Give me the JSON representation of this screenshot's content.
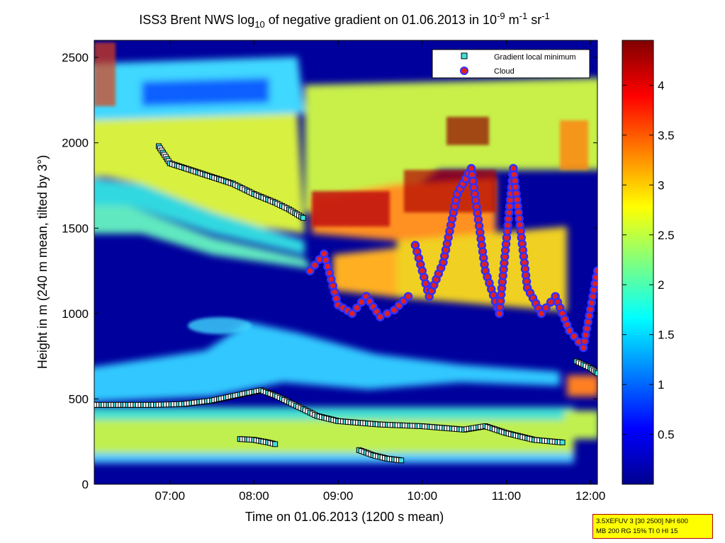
{
  "chart_data": {
    "type": "heatmap",
    "title": "ISS3 Brent NWS log10 of negative gradient on 01.06.2013 in 10-9 m-1 sr-1",
    "title_parts": {
      "a": "ISS3 Brent NWS log",
      "sub1": "10",
      "b": " of negative gradient on 01.06.2013 in 10",
      "sup1": "-9",
      "c": " m",
      "sup2": "-1",
      "d": " sr",
      "sup3": "-1"
    },
    "xlabel": "Time on 01.06.2013 (1200 s mean)",
    "ylabel": "Height in m (240 m mean, tilted by 3°)",
    "xlim": [
      "06:06",
      "12:05"
    ],
    "ylim": [
      0,
      2600
    ],
    "x_ticks": [
      "07:00",
      "08:00",
      "09:00",
      "10:00",
      "11:00",
      "12:00"
    ],
    "y_ticks": [
      "0",
      "500",
      "1000",
      "1500",
      "2000",
      "2500"
    ],
    "colorbar": {
      "min": 0.0,
      "max": 4.45,
      "ticks": [
        "0.5",
        "1",
        "1.5",
        "2",
        "2.5",
        "3",
        "3.5",
        "4"
      ],
      "colormap": "jet"
    },
    "legend": {
      "position": "top-right",
      "entries": [
        {
          "label": "Gradient local minimum",
          "marker": "square",
          "face": "#40e0e0",
          "edge": "#000000"
        },
        {
          "label": "Cloud",
          "marker": "circle",
          "face": "#e02020",
          "edge": "#3030ff"
        }
      ]
    },
    "series": [
      {
        "name": "Gradient local minimum",
        "layers": [
          {
            "x": [
              "06:06",
              "06:30",
              "06:50",
              "07:10",
              "07:30",
              "07:50",
              "08:05",
              "08:15",
              "08:30",
              "08:45",
              "09:00",
              "09:30",
              "10:00",
              "10:30",
              "10:45",
              "11:00",
              "11:20",
              "11:40"
            ],
            "y": [
              465,
              465,
              465,
              470,
              490,
              525,
              550,
              520,
              460,
              400,
              370,
              350,
              340,
              320,
              340,
              300,
              260,
              245
            ]
          },
          {
            "x": [
              "06:52",
              "07:00",
              "07:15",
              "07:30",
              "07:45",
              "08:00",
              "08:15",
              "08:25",
              "08:35"
            ],
            "y": [
              1980,
              1880,
              1840,
              1800,
              1760,
              1700,
              1650,
              1610,
              1560
            ]
          },
          {
            "x": [
              "07:50",
              "08:00",
              "08:10",
              "08:15"
            ],
            "y": [
              265,
              260,
              245,
              235
            ]
          },
          {
            "x": [
              "09:15",
              "09:25",
              "09:35",
              "09:45"
            ],
            "y": [
              200,
              170,
              150,
              140
            ]
          },
          {
            "x": [
              "11:50",
              "11:55",
              "12:00",
              "12:05"
            ],
            "y": [
              720,
              700,
              680,
              650
            ]
          }
        ]
      },
      {
        "name": "Cloud",
        "layers": [
          {
            "x": [
              "08:40",
              "08:50",
              "09:00",
              "09:10",
              "09:20",
              "09:30",
              "09:40",
              "09:50"
            ],
            "y": [
              1250,
              1350,
              1050,
              1000,
              1100,
              980,
              1020,
              1100
            ]
          },
          {
            "x": [
              "09:55",
              "10:05",
              "10:15",
              "10:25",
              "10:35",
              "10:45",
              "10:55",
              "11:05",
              "11:15",
              "11:25",
              "11:35",
              "11:45",
              "11:55",
              "12:05"
            ],
            "y": [
              1400,
              1100,
              1300,
              1700,
              1850,
              1250,
              1000,
              1850,
              1150,
              1000,
              1100,
              900,
              800,
              1250
            ]
          }
        ]
      }
    ]
  },
  "info_box": {
    "line1": "3.5XEFUV 3 [30 2500] NH 600",
    "line2": "MB 200 RG 15% TI 0 HI 15"
  }
}
